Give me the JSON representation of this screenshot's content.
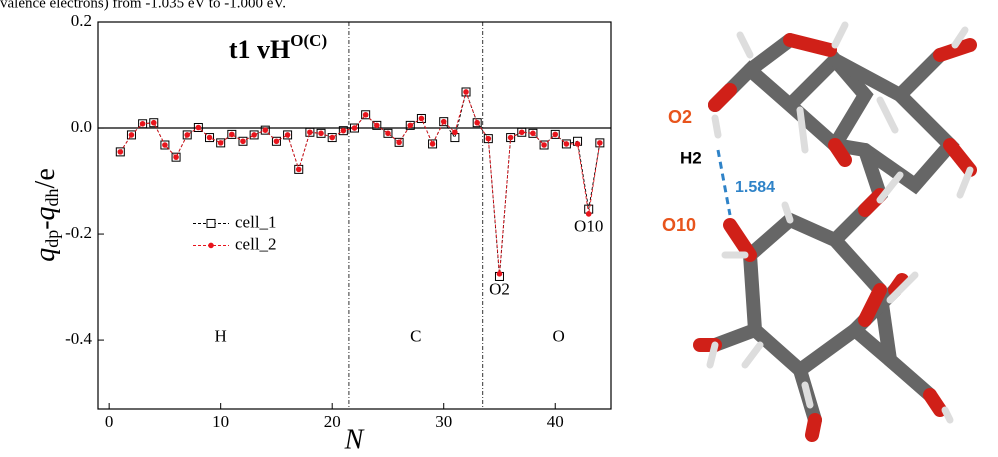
{
  "caption": "valence electrons) from -1.035 eV to -1.000 eV.",
  "chart_data": {
    "type": "line",
    "title": "t1 vH",
    "title_sup": "O(C)",
    "ylabel_parts": [
      "q",
      "dp",
      "-",
      "q",
      "dh",
      "/e"
    ],
    "xlabel": "N",
    "x": [
      1,
      2,
      3,
      4,
      5,
      6,
      7,
      8,
      9,
      10,
      11,
      12,
      13,
      14,
      15,
      16,
      17,
      18,
      19,
      20,
      21,
      22,
      23,
      24,
      25,
      26,
      27,
      28,
      29,
      30,
      31,
      32,
      33,
      34,
      35,
      36,
      37,
      38,
      39,
      40,
      41,
      42,
      43,
      44
    ],
    "series": [
      {
        "name": "cell_1",
        "color": "#000000",
        "marker": "open-square",
        "values": [
          -0.045,
          -0.013,
          0.008,
          0.01,
          -0.032,
          -0.055,
          -0.013,
          0.001,
          -0.018,
          -0.028,
          -0.012,
          -0.025,
          -0.013,
          -0.004,
          -0.025,
          -0.013,
          -0.078,
          -0.008,
          -0.01,
          -0.018,
          -0.005,
          0.0,
          0.025,
          0.005,
          -0.01,
          -0.027,
          0.005,
          0.018,
          -0.03,
          0.012,
          -0.018,
          0.068,
          0.01,
          -0.02,
          -0.28,
          -0.018,
          -0.008,
          -0.01,
          -0.032,
          -0.012,
          -0.03,
          -0.025,
          -0.153,
          -0.028
        ]
      },
      {
        "name": "cell_2",
        "color": "#e8141c",
        "marker": "dot",
        "values": [
          -0.045,
          -0.013,
          0.008,
          0.01,
          -0.032,
          -0.055,
          -0.013,
          0.001,
          -0.018,
          -0.028,
          -0.012,
          -0.025,
          -0.013,
          -0.004,
          -0.025,
          -0.013,
          -0.078,
          -0.008,
          -0.01,
          -0.018,
          -0.005,
          0.0,
          0.025,
          0.005,
          -0.01,
          -0.027,
          0.005,
          0.018,
          -0.03,
          0.012,
          -0.008,
          0.068,
          0.01,
          -0.02,
          -0.275,
          -0.018,
          -0.008,
          -0.01,
          -0.032,
          -0.012,
          -0.03,
          -0.03,
          -0.162,
          -0.028
        ]
      }
    ],
    "xlim": [
      -1,
      45
    ],
    "xticks": [
      0,
      10,
      20,
      30,
      40
    ],
    "ylim": [
      -0.53,
      0.2
    ],
    "yticks": [
      {
        "value": 0.2,
        "label": "0.2"
      },
      {
        "value": 0,
        "label": "0.0"
      },
      {
        "value": -0.2,
        "label": "-0.2"
      },
      {
        "value": -0.4,
        "label": "-0.4"
      }
    ],
    "zero_line": 0,
    "dividers": [
      21.5,
      33.5
    ],
    "regions": [
      {
        "label": "H",
        "x": 10,
        "y": -0.395
      },
      {
        "label": "C",
        "x": 27.5,
        "y": -0.395
      },
      {
        "label": "O",
        "x": 40.3,
        "y": -0.395
      }
    ],
    "annotations": [
      {
        "text": "O2",
        "x": 35,
        "y": -0.307
      },
      {
        "text": "O10",
        "x": 43,
        "y": -0.188
      }
    ],
    "legend": "center left"
  },
  "molecule": {
    "labels": [
      "O2",
      "H2",
      "1.584",
      "O10"
    ]
  }
}
